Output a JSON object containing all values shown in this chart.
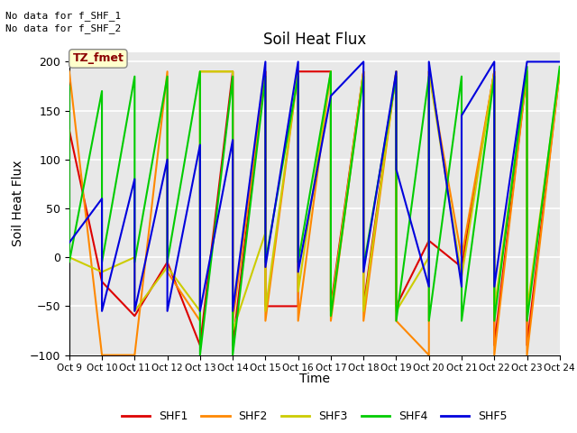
{
  "title": "Soil Heat Flux",
  "ylabel": "Soil Heat Flux",
  "xlabel": "Time",
  "annotation_line1": "No data for f_SHF_1",
  "annotation_line2": "No data for f_SHF_2",
  "box_label": "TZ_fmet",
  "ylim": [
    -100,
    210
  ],
  "yticks": [
    -100,
    -50,
    0,
    50,
    100,
    150,
    200
  ],
  "colors": {
    "SHF1": "#dd0000",
    "SHF2": "#ff8800",
    "SHF3": "#cccc00",
    "SHF4": "#00cc00",
    "SHF5": "#0000dd"
  },
  "x_labels": [
    "Oct 9",
    "Oct 10",
    "Oct 11",
    "Oct 12",
    "Oct 13",
    "Oct 14",
    "Oct 15",
    "Oct 16",
    "Oct 17",
    "Oct 18",
    "Oct 19",
    "Oct 20",
    "Oct 21",
    "Oct 22",
    "Oct 23",
    "Oct 24"
  ],
  "x_values": [
    9,
    10,
    11,
    12,
    13,
    14,
    15,
    16,
    17,
    18,
    19,
    20,
    21,
    22,
    23,
    24
  ],
  "series": {
    "SHF1": {
      "x": [
        9,
        10,
        11,
        12,
        13,
        14,
        14,
        15,
        15,
        16,
        16,
        17,
        17,
        18,
        18,
        19,
        19,
        20,
        21,
        22,
        22,
        23,
        23,
        24
      ],
      "y": [
        130,
        -25,
        -60,
        -5,
        -90,
        190,
        -90,
        190,
        -50,
        -50,
        190,
        190,
        -50,
        190,
        -50,
        190,
        -50,
        17,
        -10,
        190,
        -90,
        190,
        -90,
        190
      ]
    },
    "SHF2": {
      "x": [
        9,
        10,
        11,
        12,
        12,
        13,
        13,
        14,
        14,
        15,
        15,
        16,
        16,
        17,
        17,
        18,
        18,
        19,
        19,
        20,
        20,
        21,
        22,
        22,
        23,
        23,
        24
      ],
      "y": [
        190,
        -100,
        -100,
        190,
        -15,
        -65,
        190,
        190,
        -65,
        190,
        -65,
        190,
        -65,
        190,
        -65,
        190,
        -65,
        190,
        -65,
        -100,
        190,
        0,
        190,
        -100,
        190,
        -100,
        190
      ]
    },
    "SHF3": {
      "x": [
        9,
        10,
        11,
        11,
        12,
        13,
        13,
        14,
        14,
        15,
        15,
        16,
        16,
        17,
        17,
        18,
        18,
        19,
        19,
        20,
        20,
        21,
        22,
        22,
        23,
        23,
        24
      ],
      "y": [
        0,
        -15,
        0,
        -55,
        -10,
        -55,
        190,
        190,
        -75,
        25,
        -55,
        190,
        -35,
        190,
        -55,
        190,
        -55,
        190,
        -55,
        0,
        190,
        -20,
        190,
        -55,
        190,
        -55,
        190
      ]
    },
    "SHF4": {
      "x": [
        9,
        9,
        10,
        10,
        11,
        11,
        12,
        12,
        13,
        13,
        14,
        14,
        15,
        15,
        16,
        16,
        17,
        17,
        18,
        18,
        19,
        19,
        20,
        20,
        21,
        21,
        22,
        22,
        23,
        23,
        24
      ],
      "y": [
        175,
        -5,
        170,
        -5,
        185,
        -5,
        185,
        -5,
        190,
        -100,
        185,
        -100,
        185,
        -5,
        185,
        -5,
        190,
        -60,
        185,
        -10,
        185,
        -65,
        185,
        -65,
        185,
        -65,
        185,
        -65,
        195,
        -65,
        195
      ]
    },
    "SHF5": {
      "x": [
        9,
        10,
        10,
        11,
        11,
        12,
        12,
        13,
        13,
        14,
        14,
        15,
        15,
        16,
        16,
        17,
        17,
        18,
        18,
        19,
        19,
        20,
        20,
        21,
        21,
        22,
        22,
        23,
        24
      ],
      "y": [
        15,
        60,
        -55,
        80,
        -55,
        100,
        -55,
        115,
        -55,
        120,
        -55,
        200,
        -10,
        200,
        -15,
        165,
        165,
        200,
        -15,
        190,
        90,
        -30,
        200,
        -30,
        145,
        200,
        -30,
        200,
        200
      ]
    }
  },
  "background_color": "#e8e8e8",
  "grid_color": "white",
  "legend_items": [
    "SHF1",
    "SHF2",
    "SHF3",
    "SHF4",
    "SHF5"
  ]
}
